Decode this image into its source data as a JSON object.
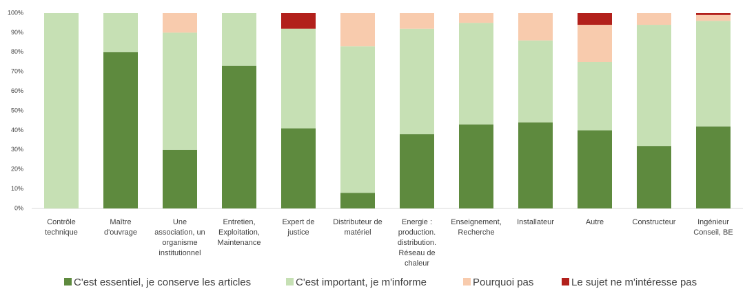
{
  "chart_data": {
    "type": "bar",
    "stacked": true,
    "categories": [
      "Contrôle\ntechnique",
      "Maître\nd'ouvrage",
      "Une\nassociation, un\norganisme\ninstitutionnel",
      "Entretien,\nExploitation,\nMaintenance",
      "Expert de\njustice",
      "Distributeur de\nmatériel",
      "Energie :\nproduction.\ndistribution.\nRéseau de\nchaleur",
      "Enseignement,\nRecherche",
      "Installateur",
      "Autre",
      "Constructeur",
      "Ingénieur\nConseil, BE"
    ],
    "series": [
      {
        "name": "C'est essentiel, je conserve les articles",
        "color": "#5e8a3e",
        "values": [
          0,
          80,
          30,
          73,
          41,
          8,
          38,
          43,
          44,
          40,
          32,
          42
        ]
      },
      {
        "name": "C'est important, je m'informe",
        "color": "#c6e0b4",
        "values": [
          100,
          20,
          60,
          27,
          51,
          75,
          54,
          52,
          42,
          35,
          62,
          54
        ]
      },
      {
        "name": "Pourquoi pas",
        "color": "#f8cbad",
        "values": [
          0,
          0,
          10,
          0,
          0,
          17,
          8,
          5,
          14,
          19,
          6,
          3
        ]
      },
      {
        "name": "Le sujet ne m'intéresse pas",
        "color": "#b2201b",
        "values": [
          0,
          0,
          0,
          0,
          8,
          0,
          0,
          0,
          0,
          6,
          0,
          1
        ]
      }
    ],
    "ylim": [
      0,
      100
    ],
    "yticks": [
      {
        "value": 0,
        "label": "0%"
      },
      {
        "value": 10,
        "label": "10%"
      },
      {
        "value": 20,
        "label": "20%"
      },
      {
        "value": 30,
        "label": "30%"
      },
      {
        "value": 40,
        "label": "40%"
      },
      {
        "value": 50,
        "label": "50%"
      },
      {
        "value": 60,
        "label": "60%"
      },
      {
        "value": 70,
        "label": "70%"
      },
      {
        "value": 80,
        "label": "80%"
      },
      {
        "value": 90,
        "label": "90%"
      },
      {
        "value": 100,
        "label": "100%"
      }
    ],
    "grid": false,
    "legend": "bottom"
  }
}
